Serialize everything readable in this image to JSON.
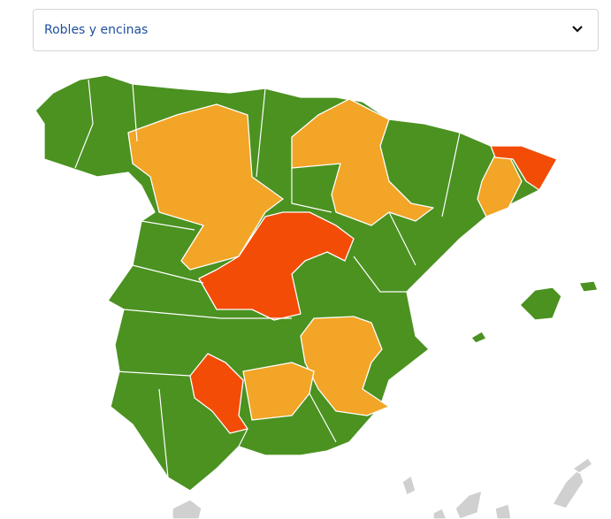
{
  "dropdown": {
    "selected": "Robles y encinas"
  }
}
